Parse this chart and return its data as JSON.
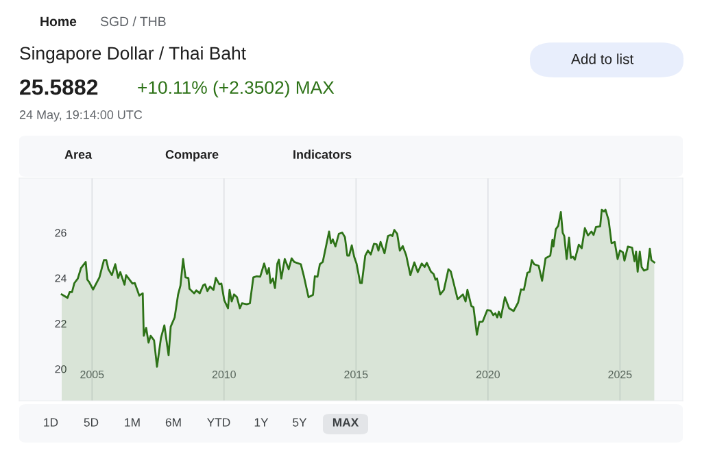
{
  "chart_data": {
    "type": "area",
    "title": "Singapore Dollar / Thai Baht",
    "subtitle": "25.5882",
    "annotations": [
      "Home",
      "SGD / THB",
      "+10.11% (+2.3502) MAX",
      "24 May, 19:14:00 UTC",
      "Add to list",
      "Area",
      "Compare",
      "Indicators",
      "1D",
      "5D",
      "1M",
      "6M",
      "YTD",
      "1Y",
      "5Y",
      "MAX"
    ],
    "series": [
      {
        "color": "#2d7217",
        "x": [
          2003.85,
          2004.07,
          2004.15,
          2004.24,
          2004.33,
          2004.46,
          2004.58,
          2004.76,
          2004.82,
          2004.89,
          2005.04,
          2005.28,
          2005.45,
          2005.54,
          2005.62,
          2005.75,
          2005.88,
          2005.99,
          2006.07,
          2006.23,
          2006.29,
          2006.53,
          2006.62,
          2006.79,
          2006.92,
          2006.96,
          2007.05,
          2007.14,
          2007.22,
          2007.35,
          2007.46,
          2007.61,
          2007.74,
          2007.9,
          2007.98,
          2008.13,
          2008.26,
          2008.35,
          2008.45,
          2008.54,
          2008.65,
          2008.69,
          2008.87,
          2008.95,
          2009.08,
          2009.21,
          2009.28,
          2009.37,
          2009.47,
          2009.6,
          2009.69,
          2009.82,
          2009.9,
          2010.01,
          2010.15,
          2010.21,
          2010.29,
          2010.38,
          2010.49,
          2010.6,
          2010.68,
          2010.86,
          2010.98,
          2011.11,
          2011.24,
          2011.37,
          2011.52,
          2011.63,
          2011.7,
          2011.76,
          2011.85,
          2011.93,
          2012.02,
          2012.08,
          2012.17,
          2012.3,
          2012.45,
          2012.56,
          2012.66,
          2012.91,
          2013.03,
          2013.2,
          2013.37,
          2013.44,
          2013.54,
          2013.63,
          2013.74,
          2013.88,
          2013.98,
          2014.05,
          2014.12,
          2014.22,
          2014.35,
          2014.48,
          2014.58,
          2014.67,
          2014.74,
          2014.84,
          2014.93,
          2015.02,
          2015.16,
          2015.22,
          2015.35,
          2015.45,
          2015.56,
          2015.68,
          2015.78,
          2015.85,
          2015.93,
          2016.08,
          2016.21,
          2016.31,
          2016.38,
          2016.45,
          2016.56,
          2016.66,
          2016.77,
          2016.9,
          2017.06,
          2017.21,
          2017.34,
          2017.49,
          2017.6,
          2017.68,
          2017.84,
          2017.94,
          2018.01,
          2018.07,
          2018.19,
          2018.33,
          2018.5,
          2018.59,
          2018.7,
          2018.85,
          2019.05,
          2019.15,
          2019.22,
          2019.37,
          2019.45,
          2019.58,
          2019.67,
          2019.8,
          2019.97,
          2020.1,
          2020.2,
          2020.28,
          2020.35,
          2020.41,
          2020.49,
          2020.64,
          2020.8,
          2020.97,
          2021.14,
          2021.25,
          2021.36,
          2021.49,
          2021.58,
          2021.66,
          2021.75,
          2021.92,
          2022.05,
          2022.18,
          2022.36,
          2022.44,
          2022.48,
          2022.57,
          2022.66,
          2022.76,
          2022.83,
          2022.89,
          2022.98,
          2023.07,
          2023.14,
          2023.22,
          2023.29,
          2023.44,
          2023.55,
          2023.67,
          2023.79,
          2023.92,
          2024.0,
          2024.09,
          2024.25,
          2024.31,
          2024.39,
          2024.45,
          2024.57,
          2024.68,
          2024.8,
          2024.91,
          2025.0,
          2025.11,
          2025.17,
          2025.3,
          2025.46,
          2025.55,
          2025.61,
          2025.67,
          2025.75,
          2025.82,
          2025.91,
          2026.04,
          2026.13,
          2026.19,
          2026.3
        ],
        "values": [
          23.28,
          23.13,
          23.38,
          23.38,
          23.78,
          23.98,
          24.44,
          24.71,
          23.93,
          23.83,
          23.5,
          24.03,
          24.79,
          24.79,
          24.39,
          24.13,
          24.61,
          24.01,
          24.26,
          23.71,
          24.13,
          23.76,
          23.78,
          23.23,
          23.33,
          21.46,
          21.81,
          21.16,
          21.46,
          21.26,
          20.1,
          21.36,
          21.92,
          20.6,
          21.86,
          22.27,
          23.28,
          23.68,
          24.84,
          24.03,
          24.0,
          23.53,
          23.33,
          23.46,
          23.33,
          23.68,
          23.73,
          23.43,
          23.63,
          23.48,
          24.01,
          23.73,
          23.76,
          23.02,
          22.67,
          23.48,
          22.97,
          23.28,
          23.16,
          22.67,
          22.89,
          22.85,
          22.89,
          24.03,
          24.08,
          24.06,
          24.64,
          24.18,
          24.44,
          23.78,
          23.98,
          23.56,
          24.64,
          24.81,
          23.98,
          24.84,
          24.39,
          24.87,
          24.71,
          24.61,
          24.06,
          23.16,
          23.26,
          24.08,
          24.06,
          24.61,
          24.71,
          25.49,
          26.05,
          25.54,
          25.7,
          25.39,
          25.95,
          26.0,
          25.8,
          24.99,
          24.99,
          25.44,
          24.94,
          24.64,
          23.78,
          23.78,
          24.99,
          25.21,
          25.04,
          25.51,
          25.49,
          25.21,
          25.59,
          25.09,
          25.85,
          25.9,
          25.85,
          26.12,
          25.95,
          25.21,
          25.41,
          25.01,
          24.13,
          24.69,
          24.26,
          24.64,
          24.49,
          24.67,
          24.28,
          24.18,
          23.93,
          23.98,
          23.28,
          23.48,
          24.39,
          24.29,
          23.78,
          23.07,
          23.28,
          22.97,
          23.48,
          22.77,
          22.72,
          21.51,
          22.07,
          22.09,
          22.59,
          22.57,
          22.37,
          22.45,
          22.27,
          22.52,
          22.27,
          23.16,
          22.67,
          22.55,
          22.92,
          23.5,
          23.48,
          24.23,
          24.28,
          24.79,
          24.61,
          24.54,
          23.88,
          24.87,
          24.99,
          25.68,
          25.39,
          26.15,
          26.3,
          26.91,
          26.0,
          25.85,
          24.84,
          25.78,
          24.89,
          24.94,
          24.81,
          25.47,
          25.31,
          26.2,
          25.88,
          26.05,
          25.9,
          26.25,
          26.28,
          27.01,
          26.93,
          27.01,
          26.55,
          25.54,
          25.59,
          24.84,
          25.21,
          25.14,
          24.77,
          25.39,
          25.34,
          24.74,
          25.17,
          24.28,
          25.17,
          24.49,
          24.33,
          24.39,
          25.29,
          24.79,
          24.69
        ]
      }
    ],
    "xlim": [
      2002.24,
      2027.38
    ],
    "xticks": [
      2005,
      2010,
      2015,
      2020,
      2025
    ],
    "ylim": [
      18.6,
      28.4
    ],
    "yticks": [
      20,
      22,
      24,
      26
    ],
    "grid": "x"
  }
}
